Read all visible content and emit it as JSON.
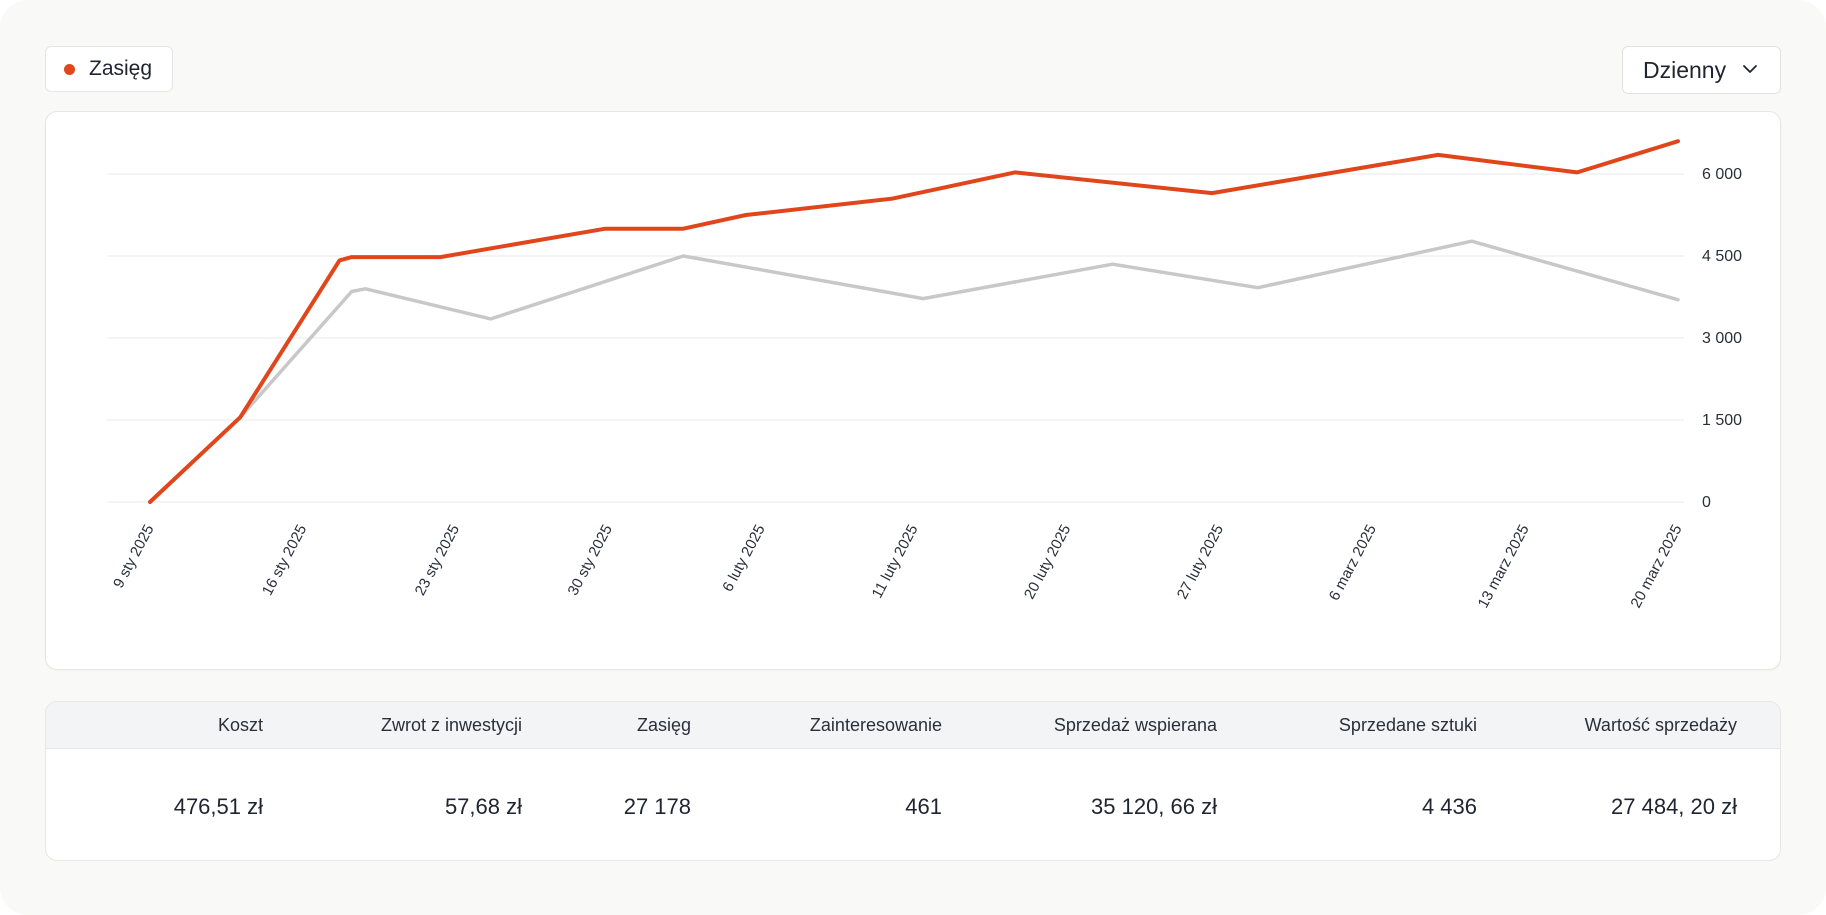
{
  "legend": {
    "label": "Zasięg",
    "dot_color": "#e0451b"
  },
  "period_select": {
    "label": "Dzienny",
    "icon": "chevron-down-icon"
  },
  "chart_data": {
    "type": "line",
    "x": [
      "9 sty 2025",
      "16 sty 2025",
      "23 sty 2025",
      "30 sty 2025",
      "6 luty 2025",
      "11 luty 2025",
      "20 luty 2025",
      "27 luty 2025",
      "6 marz 2025",
      "13 marz 2025",
      "20 marz 2025"
    ],
    "y_ticks": [
      "0",
      "1 500",
      "3 000",
      "4 500",
      "6 000"
    ],
    "ylim": [
      0,
      6000
    ],
    "grid": true,
    "y_axis_side": "right",
    "series": [
      {
        "name": "Zasięg",
        "color": "#e0451b",
        "points": [
          [
            0,
            0
          ],
          [
            0.59,
            1550
          ],
          [
            1.24,
            4420
          ],
          [
            1.32,
            4480
          ],
          [
            1.9,
            4480
          ],
          [
            2.98,
            5000
          ],
          [
            3.49,
            5000
          ],
          [
            3.9,
            5250
          ],
          [
            4.86,
            5550
          ],
          [
            5.66,
            6030
          ],
          [
            6.95,
            5650
          ],
          [
            8.43,
            6350
          ],
          [
            9.34,
            6030
          ],
          [
            10.0,
            6600
          ]
        ]
      },
      {
        "color": "#c8c8c8",
        "points": [
          [
            0.59,
            1550
          ],
          [
            1.32,
            3850
          ],
          [
            1.41,
            3900
          ],
          [
            2.23,
            3350
          ],
          [
            3.49,
            4500
          ],
          [
            5.06,
            3720
          ],
          [
            6.3,
            4350
          ],
          [
            7.25,
            3920
          ],
          [
            8.65,
            4770
          ],
          [
            10.0,
            3700
          ]
        ]
      }
    ]
  },
  "table": {
    "columns": [
      "Koszt",
      "Zwrot z inwestycji",
      "Zasięg",
      "Zainteresowanie",
      "Sprzedaż wspierana",
      "Sprzedane sztuki",
      "Wartość sprzedaży"
    ],
    "row": [
      "476,51 zł",
      "57,68 zł",
      "27 178",
      "461",
      "35 120, 66 zł",
      "4 436",
      "27 484, 20 zł"
    ]
  }
}
